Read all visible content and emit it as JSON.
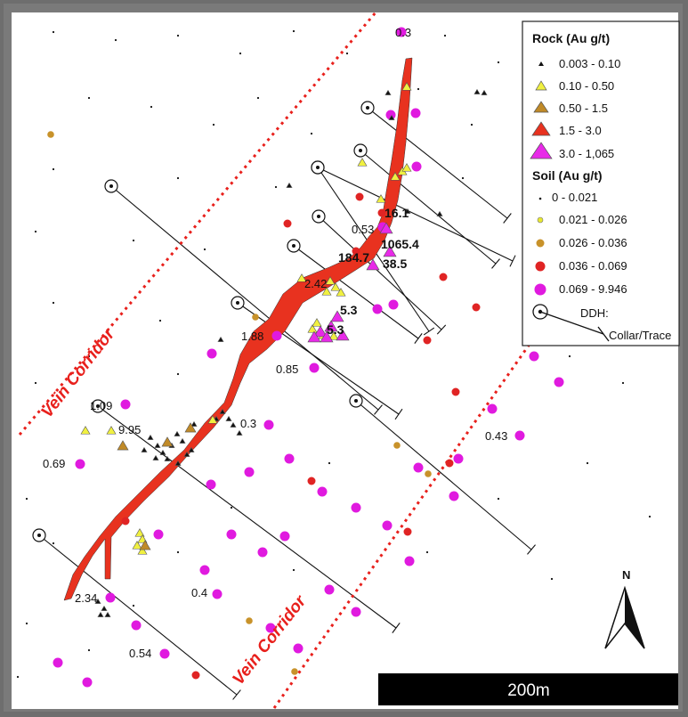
{
  "legend": {
    "rock_title": "Rock (Au g/t)",
    "rock_classes": [
      "0.003 - 0.10",
      "0.10 - 0.50",
      "0.50 - 1.5",
      "1.5 - 3.0",
      "3.0 - 1,065"
    ],
    "soil_title": "Soil (Au g/t)",
    "soil_classes": [
      "0 - 0.021",
      "0.021 - 0.026",
      "0.026 - 0.036",
      "0.036 - 0.069",
      "0.069 - 9.946"
    ],
    "ddh_title": "DDH:",
    "ddh_label": "Collar/Trace"
  },
  "corridor_labels": {
    "upper": "Vein Corridor",
    "lower": "Vein Corridor"
  },
  "north_label": "N",
  "scale_bar_label": "200m",
  "sample_labels": {
    "a": "0.3",
    "b": "16.1",
    "c": "0.53",
    "d": "1065.4",
    "e": "184.7",
    "f": "38.5",
    "g": "2.42",
    "h": "5.3",
    "i": "5.3",
    "j": "1.88",
    "k": "0.85",
    "l": "1.09",
    "m": "9.95",
    "n": "0.3",
    "o": "0.69",
    "p": "0.43",
    "q": "2.34",
    "r": "0.4",
    "s": "0.54"
  },
  "colors": {
    "vein": "#e8321f",
    "corridor": "#e8201c",
    "soil_magenta": "#e01adf",
    "soil_red": "#e02424",
    "soil_brown": "#c8922a",
    "soil_yellow": "#e8e830",
    "rock_yellow": "#f0f040",
    "rock_brown": "#c08a28",
    "rock_magenta": "#e82ae8",
    "frame": "#7a7a7a"
  }
}
